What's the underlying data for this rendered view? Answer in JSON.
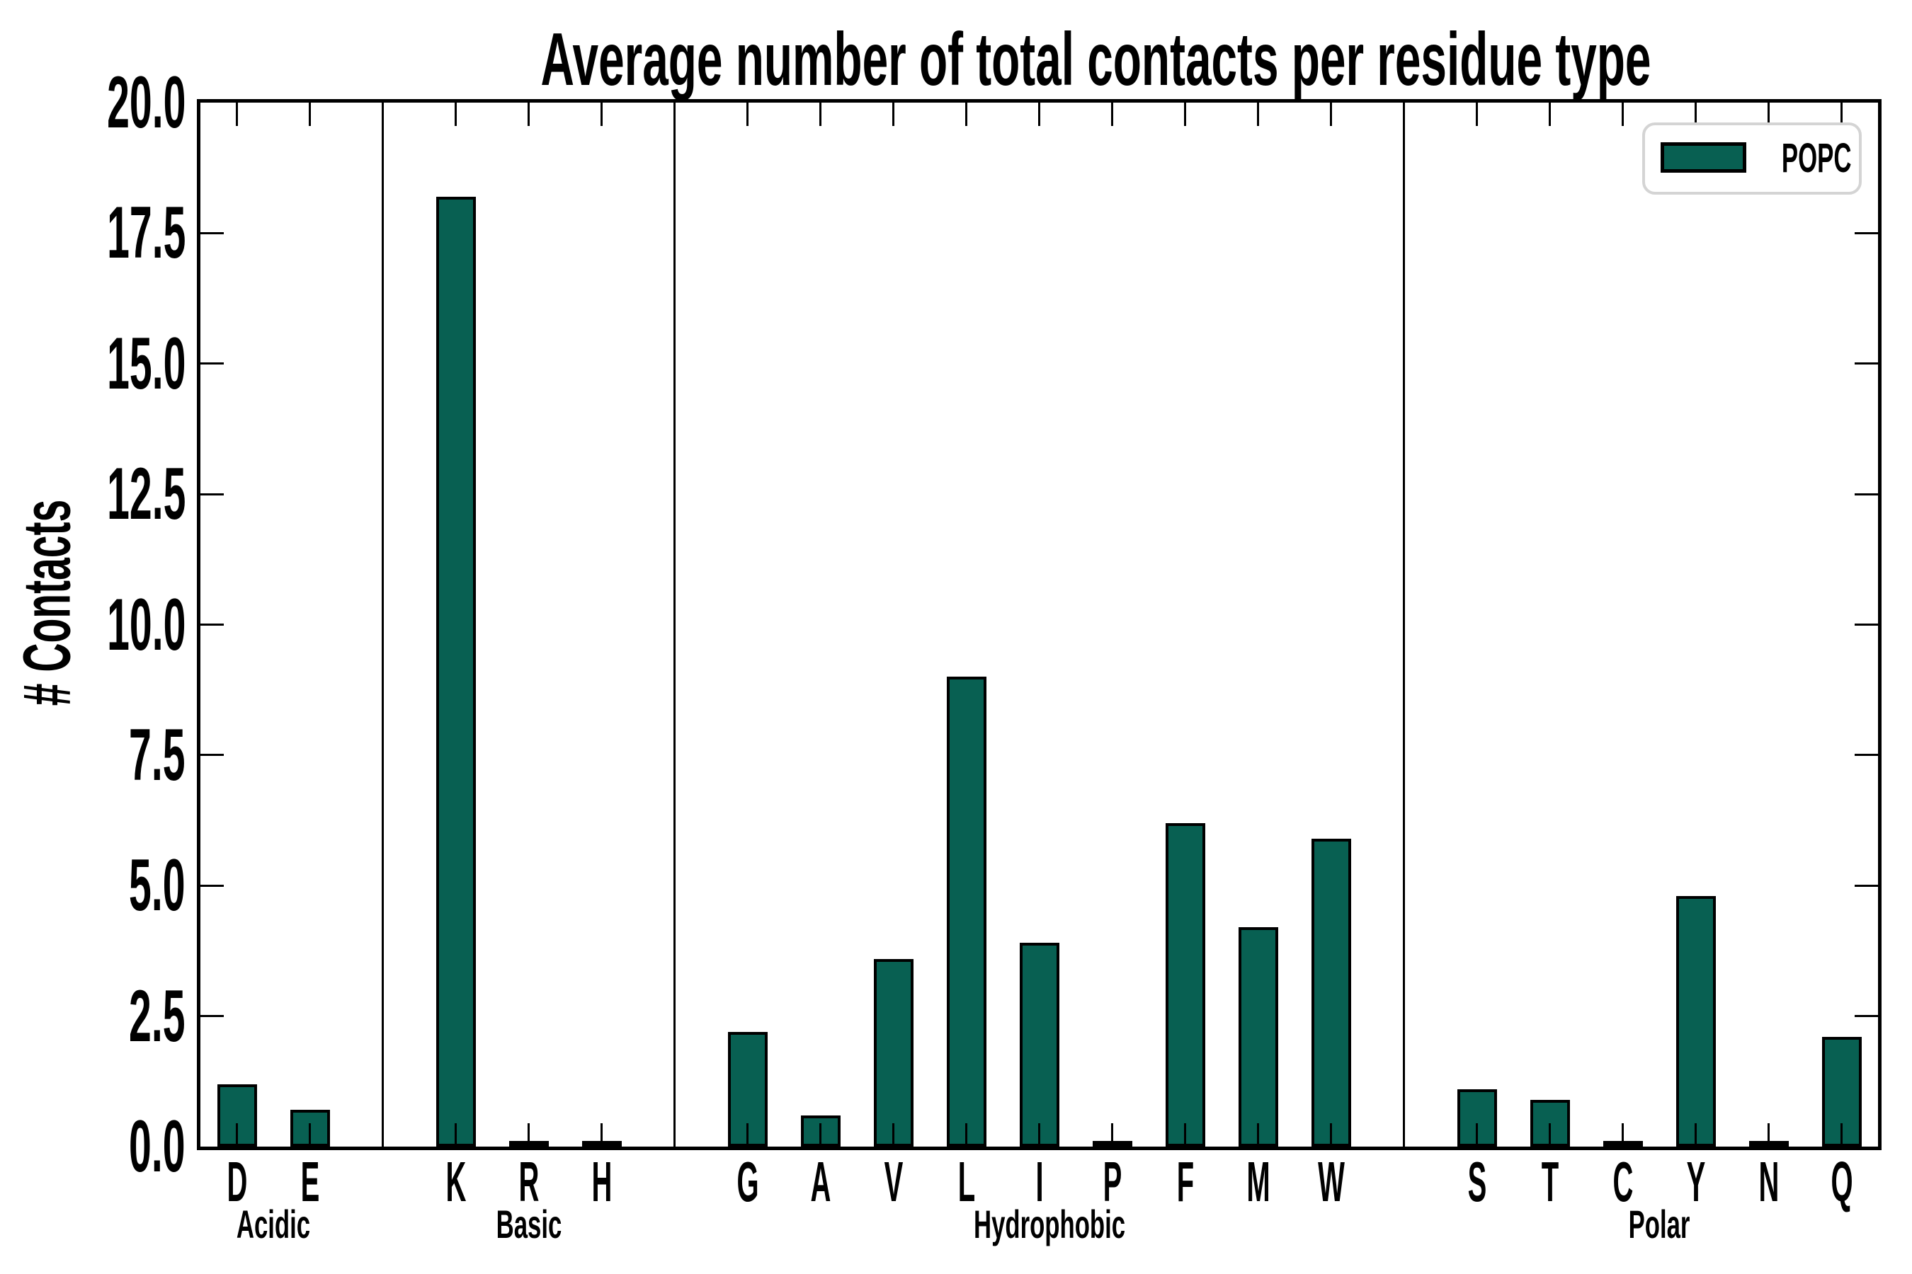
{
  "title": "Average number of total contacts per residue type",
  "ylabel": "# Contacts",
  "legend": [
    {
      "label": "POPC"
    }
  ],
  "colors": {
    "bar_fill": "#086052",
    "bar_edge": "#000000",
    "axis": "#000000",
    "legend_border": "#d4d4d4",
    "background": "#ffffff"
  },
  "chart_data": {
    "type": "bar",
    "title": "Average number of total contacts per residue type",
    "xlabel": "",
    "ylabel": "# Contacts",
    "ylim": [
      0,
      20
    ],
    "yticks": [
      0.0,
      2.5,
      5.0,
      7.5,
      10.0,
      12.5,
      15.0,
      17.5,
      20.0
    ],
    "grid": false,
    "legend_entries": [
      "POPC"
    ],
    "legend_position": "upper right",
    "bar_color": "#086052",
    "group_separators": true,
    "groups": [
      {
        "label": "Acidic",
        "categories": [
          "D",
          "E"
        ],
        "values": [
          1.2,
          0.7
        ]
      },
      {
        "label": "Basic",
        "categories": [
          "K",
          "R",
          "H"
        ],
        "values": [
          18.2,
          0.05,
          0.05
        ]
      },
      {
        "label": "Hydrophobic",
        "categories": [
          "G",
          "A",
          "V",
          "L",
          "I",
          "P",
          "F",
          "M",
          "W"
        ],
        "values": [
          2.2,
          0.6,
          3.6,
          9.0,
          3.9,
          0.05,
          6.2,
          4.2,
          5.9
        ]
      },
      {
        "label": "Polar",
        "categories": [
          "S",
          "T",
          "C",
          "Y",
          "N",
          "Q"
        ],
        "values": [
          1.1,
          0.9,
          0.05,
          4.8,
          0.05,
          2.1
        ]
      }
    ]
  }
}
